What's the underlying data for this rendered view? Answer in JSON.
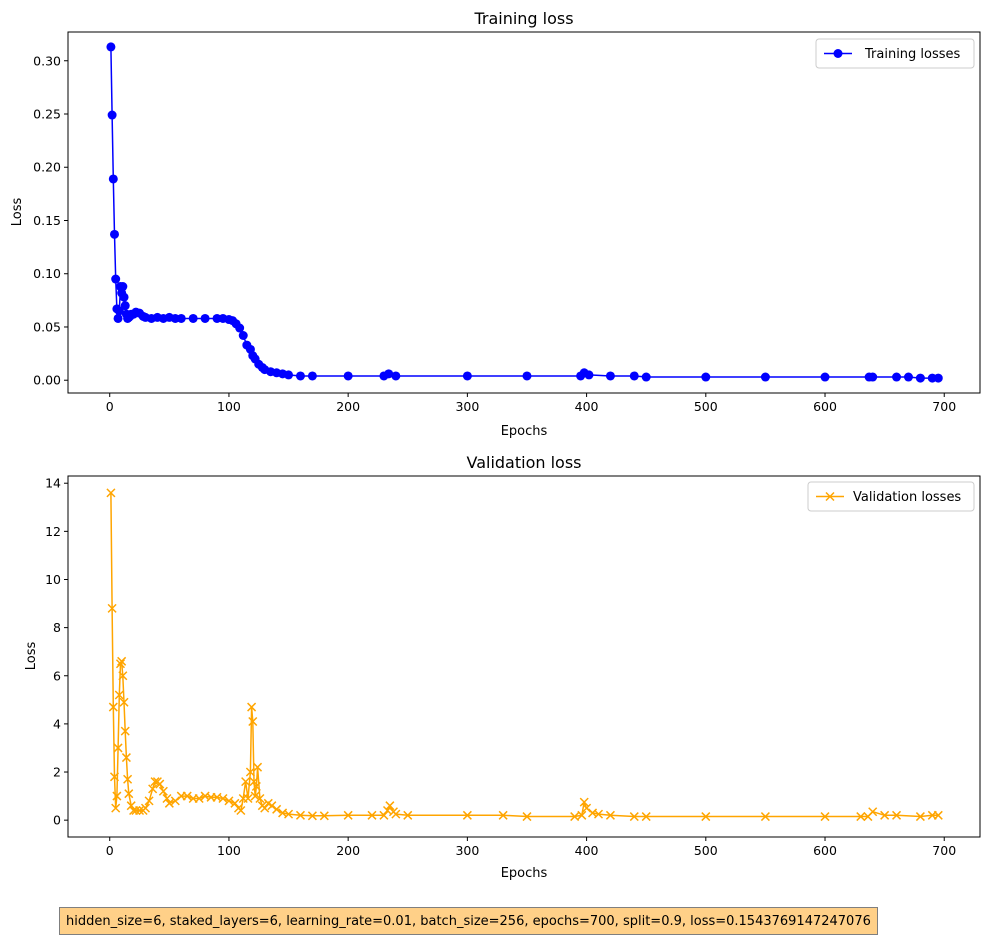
{
  "chart_data": [
    {
      "type": "line",
      "title": "Training loss",
      "xlabel": "Epochs",
      "ylabel": "Loss",
      "xlim": [
        -35,
        730
      ],
      "ylim": [
        -0.012,
        0.327
      ],
      "xticks": [
        0,
        100,
        200,
        300,
        400,
        500,
        600,
        700
      ],
      "yticks": [
        0.0,
        0.05,
        0.1,
        0.15,
        0.2,
        0.25,
        0.3
      ],
      "ytick_labels": [
        "0.00",
        "0.05",
        "0.10",
        "0.15",
        "0.20",
        "0.25",
        "0.30"
      ],
      "grid": false,
      "legend": "top-right",
      "series": [
        {
          "name": "Training losses",
          "color": "#0000ff",
          "marker": "circle",
          "x": [
            1,
            2,
            3,
            4,
            5,
            6,
            7,
            8,
            9,
            10,
            11,
            12,
            13,
            14,
            15,
            16,
            17,
            18,
            20,
            22,
            25,
            28,
            30,
            35,
            40,
            45,
            50,
            55,
            60,
            70,
            80,
            90,
            95,
            100,
            103,
            106,
            109,
            112,
            115,
            118,
            120,
            122,
            125,
            128,
            130,
            135,
            140,
            145,
            150,
            160,
            170,
            200,
            230,
            234,
            240,
            300,
            350,
            395,
            398,
            402,
            420,
            440,
            450,
            500,
            550,
            600,
            637,
            640,
            660,
            670,
            680,
            690,
            695
          ],
          "y": [
            0.313,
            0.249,
            0.189,
            0.137,
            0.095,
            0.067,
            0.058,
            0.065,
            0.088,
            0.082,
            0.088,
            0.078,
            0.07,
            0.062,
            0.058,
            0.059,
            0.06,
            0.062,
            0.062,
            0.064,
            0.063,
            0.06,
            0.059,
            0.058,
            0.059,
            0.058,
            0.059,
            0.058,
            0.058,
            0.058,
            0.058,
            0.058,
            0.058,
            0.057,
            0.056,
            0.053,
            0.049,
            0.042,
            0.033,
            0.029,
            0.023,
            0.02,
            0.015,
            0.012,
            0.01,
            0.008,
            0.007,
            0.006,
            0.005,
            0.004,
            0.004,
            0.004,
            0.004,
            0.006,
            0.004,
            0.004,
            0.004,
            0.004,
            0.007,
            0.005,
            0.004,
            0.004,
            0.003,
            0.003,
            0.003,
            0.003,
            0.003,
            0.003,
            0.003,
            0.003,
            0.002,
            0.002,
            0.002
          ]
        }
      ]
    },
    {
      "type": "line",
      "title": "Validation loss",
      "xlabel": "Epochs",
      "ylabel": "Loss",
      "xlim": [
        -35,
        730
      ],
      "ylim": [
        -0.7,
        14.3
      ],
      "xticks": [
        0,
        100,
        200,
        300,
        400,
        500,
        600,
        700
      ],
      "yticks": [
        0,
        2,
        4,
        6,
        8,
        10,
        12,
        14
      ],
      "ytick_labels": [
        "0",
        "2",
        "4",
        "6",
        "8",
        "10",
        "12",
        "14"
      ],
      "grid": false,
      "legend": "top-right",
      "series": [
        {
          "name": "Validation losses",
          "color": "#ffa500",
          "marker": "x",
          "x": [
            1,
            2,
            3,
            4,
            5,
            6,
            7,
            8,
            9,
            10,
            11,
            12,
            13,
            14,
            15,
            16,
            18,
            20,
            22,
            25,
            28,
            30,
            33,
            36,
            38,
            40,
            42,
            45,
            48,
            50,
            55,
            60,
            65,
            70,
            75,
            80,
            85,
            90,
            95,
            100,
            105,
            108,
            110,
            112,
            114,
            116,
            118,
            119,
            120,
            121,
            122,
            123,
            124,
            126,
            128,
            130,
            133,
            136,
            140,
            145,
            150,
            160,
            170,
            180,
            200,
            220,
            230,
            233,
            235,
            238,
            240,
            250,
            300,
            330,
            350,
            390,
            396,
            398,
            400,
            405,
            410,
            420,
            440,
            450,
            500,
            550,
            600,
            630,
            636,
            640,
            650,
            660,
            680,
            690,
            695
          ],
          "y": [
            13.6,
            8.8,
            4.7,
            1.8,
            0.5,
            1.0,
            3.0,
            5.2,
            6.5,
            6.6,
            6.0,
            4.9,
            3.7,
            2.6,
            1.7,
            1.1,
            0.6,
            0.4,
            0.4,
            0.4,
            0.4,
            0.5,
            0.8,
            1.3,
            1.6,
            1.6,
            1.5,
            1.2,
            0.9,
            0.7,
            0.8,
            1.0,
            1.0,
            0.9,
            0.9,
            1.0,
            0.95,
            0.95,
            0.9,
            0.8,
            0.7,
            0.5,
            0.4,
            0.9,
            1.6,
            0.9,
            2.0,
            4.7,
            4.1,
            1.6,
            1.0,
            1.4,
            2.2,
            0.9,
            0.6,
            0.5,
            0.7,
            0.6,
            0.45,
            0.3,
            0.25,
            0.2,
            0.18,
            0.18,
            0.2,
            0.2,
            0.2,
            0.4,
            0.6,
            0.35,
            0.25,
            0.2,
            0.2,
            0.2,
            0.15,
            0.15,
            0.2,
            0.75,
            0.5,
            0.3,
            0.25,
            0.2,
            0.15,
            0.15,
            0.15,
            0.15,
            0.15,
            0.15,
            0.15,
            0.35,
            0.2,
            0.2,
            0.15,
            0.2,
            0.2
          ]
        }
      ]
    }
  ],
  "note": {
    "text": "hidden_size=6, staked_layers=6, learning_rate=0.01, batch_size=256, epochs=700, split=0.9, loss=0.1543769147247076",
    "background": "#ffd088"
  }
}
